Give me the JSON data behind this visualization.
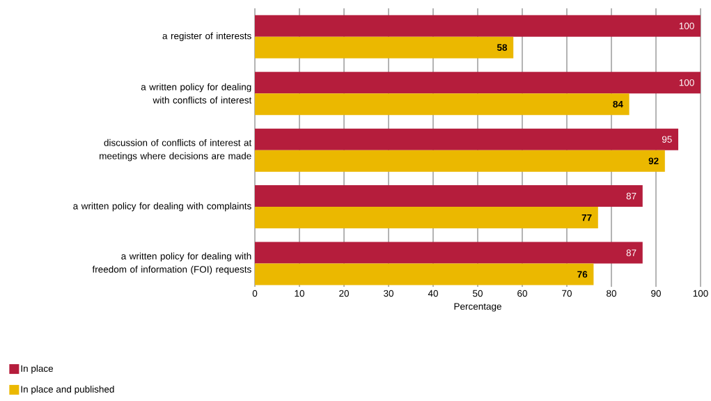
{
  "chart_data": {
    "type": "bar",
    "orientation": "horizontal",
    "xlabel": "Percentage",
    "categories": [
      "a register of interests",
      "a written policy for dealing with conflicts of interest",
      "discussion of conflicts of interest at meetings where decisions are made",
      "a written policy for dealing with complaints",
      "a written policy for dealing with freedom of information (FOI) requests"
    ],
    "series": [
      {
        "name": "In place",
        "color": "#b51d3c",
        "values": [
          100,
          100,
          95,
          87,
          87
        ]
      },
      {
        "name": "In place and published",
        "color": "#ebb800",
        "values": [
          58,
          84,
          92,
          77,
          76
        ]
      }
    ],
    "xlim": [
      0,
      100
    ],
    "xticks": [
      0,
      10,
      20,
      30,
      40,
      50,
      60,
      70,
      80,
      90,
      100
    ],
    "grid": "x",
    "legend": "bottom left",
    "data_labels": true
  }
}
